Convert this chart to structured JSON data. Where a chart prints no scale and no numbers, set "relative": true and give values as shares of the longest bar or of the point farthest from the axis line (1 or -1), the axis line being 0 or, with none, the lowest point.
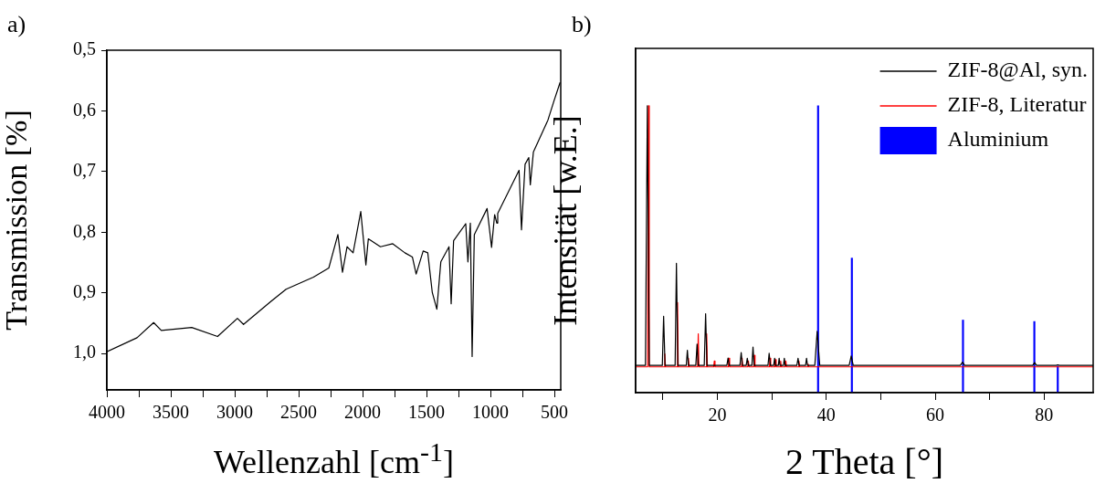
{
  "chart_data": [
    {
      "type": "line",
      "title": "a)",
      "xlabel": "Wellenzahl [cm$^{-1}$]",
      "ylabel": "Transmission [%]",
      "color": "#000000",
      "x": [
        4000,
        3764,
        3634,
        3574,
        3336,
        3134,
        2979,
        2931,
        2716,
        2598,
        2384,
        2264,
        2193,
        2157,
        2121,
        2074,
        2014,
        1974,
        1955,
        1860,
        1764,
        1669,
        1610,
        1581,
        1526,
        1490,
        1455,
        1419,
        1388,
        1324,
        1307,
        1288,
        1193,
        1176,
        1157,
        1143,
        1126,
        1026,
        991,
        967,
        950,
        943,
        776,
        757,
        729,
        700,
        688,
        664,
        550,
        502,
        455
      ],
      "values": [
        0.997,
        0.974,
        0.949,
        0.962,
        0.957,
        0.972,
        0.942,
        0.952,
        0.914,
        0.894,
        0.874,
        0.859,
        0.804,
        0.866,
        0.824,
        0.834,
        0.766,
        0.854,
        0.811,
        0.824,
        0.819,
        0.834,
        0.841,
        0.869,
        0.831,
        0.834,
        0.899,
        0.927,
        0.849,
        0.824,
        0.918,
        0.814,
        0.786,
        0.849,
        0.785,
        1.005,
        0.804,
        0.761,
        0.825,
        0.771,
        0.785,
        0.769,
        0.698,
        0.796,
        0.688,
        0.677,
        0.722,
        0.668,
        0.615,
        0.583,
        0.553
      ],
      "xlim": [
        4000,
        450
      ],
      "ylim": [
        1.06,
        0.5
      ],
      "xticks": [
        4000,
        {
          "value": 3750,
          "label": null
        },
        3500,
        {
          "value": 3250,
          "label": null
        },
        3000,
        {
          "value": 2750,
          "label": null
        },
        2500,
        {
          "value": 2250,
          "label": null
        },
        2000,
        {
          "value": 1750,
          "label": null
        },
        1500,
        {
          "value": 1250,
          "label": null
        },
        1000,
        {
          "value": 750,
          "label": null
        },
        500
      ],
      "yticks": [
        {
          "value": 0.5,
          "label": "0,5"
        },
        {
          "value": 0.6,
          "label": "0,6"
        },
        {
          "value": 0.7,
          "label": "0,7"
        },
        {
          "value": 0.8,
          "label": "0,8"
        },
        {
          "value": 0.9,
          "label": "0,9"
        },
        {
          "value": 1.0,
          "label": "1,0"
        }
      ]
    },
    {
      "type": "line",
      "title": "b)",
      "xlabel": "2 Theta [°]",
      "ylabel": "Intensität [w.E.]",
      "relative": true,
      "legend": "top right",
      "xlim": [
        5,
        89
      ],
      "xticks": [
        {
          "value": 10,
          "label": null
        },
        20,
        {
          "value": 30,
          "label": null
        },
        40,
        {
          "value": 50,
          "label": null
        },
        60,
        {
          "value": 70,
          "label": null
        },
        80
      ],
      "series": [
        {
          "name": "ZIF-8@Al, syn.",
          "color": "#000000",
          "x": [
            5,
            6.8,
            7.15,
            7.5,
            9.9,
            10.14,
            10.4,
            12.25,
            12.49,
            12.75,
            14.3,
            14.5,
            14.7,
            16.05,
            16.28,
            16.5,
            17.6,
            17.85,
            18.1,
            21.75,
            21.97,
            22.2,
            24.15,
            24.38,
            24.6,
            25.3,
            25.5,
            25.7,
            26.35,
            26.55,
            26.75,
            29.3,
            29.51,
            29.75,
            30.35,
            30.52,
            30.7,
            31.2,
            31.35,
            31.5,
            32.15,
            32.3,
            32.45,
            34.6,
            34.82,
            35.0,
            36.2,
            36.38,
            36.55,
            37.9,
            38.33,
            38.8,
            44.2,
            44.58,
            44.95,
            64.6,
            65.02,
            65.4,
            77.9,
            78.25,
            78.6,
            82.2,
            82.5,
            82.8,
            89
          ],
          "values": [
            0.095,
            0.095,
            1.0,
            0.095,
            0.095,
            0.266,
            0.095,
            0.095,
            0.451,
            0.095,
            0.095,
            0.148,
            0.095,
            0.095,
            0.169,
            0.095,
            0.095,
            0.275,
            0.095,
            0.095,
            0.121,
            0.095,
            0.095,
            0.14,
            0.095,
            0.095,
            0.12,
            0.095,
            0.095,
            0.159,
            0.095,
            0.095,
            0.137,
            0.095,
            0.095,
            0.12,
            0.095,
            0.095,
            0.12,
            0.095,
            0.095,
            0.12,
            0.095,
            0.095,
            0.12,
            0.095,
            0.095,
            0.12,
            0.095,
            0.095,
            0.214,
            0.095,
            0.095,
            0.128,
            0.095,
            0.095,
            0.106,
            0.095,
            0.095,
            0.105,
            0.095,
            0.095,
            0.097,
            0.095,
            0.095
          ]
        },
        {
          "name": "ZIF-8, Literatur",
          "color": "#ff0000",
          "x": [
            5,
            7.2,
            7.35,
            7.5,
            10.24,
            10.36,
            10.48,
            12.58,
            12.7,
            12.82,
            14.58,
            14.7,
            14.82,
            16.38,
            16.5,
            16.62,
            17.93,
            18.05,
            18.17,
            19.33,
            19.45,
            19.57,
            22.02,
            22.14,
            22.26,
            24.43,
            24.55,
            24.67,
            25.58,
            25.7,
            25.82,
            26.68,
            26.8,
            26.92,
            29.56,
            29.68,
            29.8,
            30.56,
            30.68,
            30.8,
            31.51,
            31.63,
            31.75,
            32.46,
            32.58,
            32.7,
            34.86,
            34.98,
            35.1,
            36.54,
            36.66,
            36.78,
            89
          ],
          "values": [
            0.09,
            0.09,
            1.0,
            0.09,
            0.09,
            0.135,
            0.09,
            0.09,
            0.314,
            0.09,
            0.09,
            0.12,
            0.09,
            0.09,
            0.205,
            0.09,
            0.09,
            0.205,
            0.09,
            0.09,
            0.11,
            0.09,
            0.09,
            0.12,
            0.09,
            0.09,
            0.12,
            0.09,
            0.09,
            0.11,
            0.09,
            0.09,
            0.13,
            0.09,
            0.09,
            0.12,
            0.09,
            0.09,
            0.115,
            0.09,
            0.09,
            0.11,
            0.09,
            0.09,
            0.11,
            0.09,
            0.09,
            0.11,
            0.09,
            0.09,
            0.1,
            0.09,
            0.09
          ]
        },
        {
          "name": "Aluminium",
          "type": "bar",
          "color": "#0000ff",
          "x": [
            38.5,
            44.7,
            65.1,
            78.2,
            82.5
          ],
          "values": [
            1.0,
            0.469,
            0.253,
            0.248,
            0.093
          ]
        }
      ]
    }
  ]
}
